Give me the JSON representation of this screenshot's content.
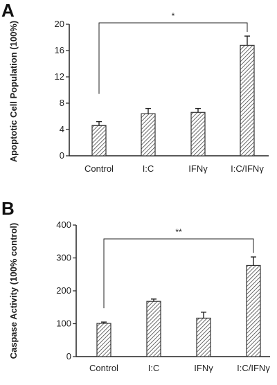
{
  "chart_data": [
    {
      "type": "bar",
      "panel": "A",
      "categories": [
        "Control",
        "I:C",
        "IFNγ",
        "I:C/IFNγ"
      ],
      "values": [
        4.6,
        6.4,
        6.6,
        16.8
      ],
      "errors": [
        0.6,
        0.8,
        0.6,
        1.4
      ],
      "ylabel": "Apoptotic Cell Population (100%)",
      "ylim": [
        0,
        20
      ],
      "yticks": [
        0,
        4,
        8,
        12,
        16,
        20
      ],
      "significance": {
        "from": 0,
        "to": 3,
        "label": "*"
      }
    },
    {
      "type": "bar",
      "panel": "B",
      "categories": [
        "Control",
        "I:C",
        "IFNγ",
        "I:C/IFNγ"
      ],
      "values": [
        101,
        168,
        117,
        277
      ],
      "errors": [
        4,
        7,
        18,
        26
      ],
      "ylabel": "Caspase Activity (100% control)",
      "ylim": [
        0,
        400
      ],
      "yticks": [
        0,
        100,
        200,
        300,
        400
      ],
      "significance": {
        "from": 0,
        "to": 3,
        "label": "**"
      }
    }
  ],
  "colors": {
    "bar_stroke": "#333333",
    "hatch": "#444444",
    "axis": "#222222"
  }
}
